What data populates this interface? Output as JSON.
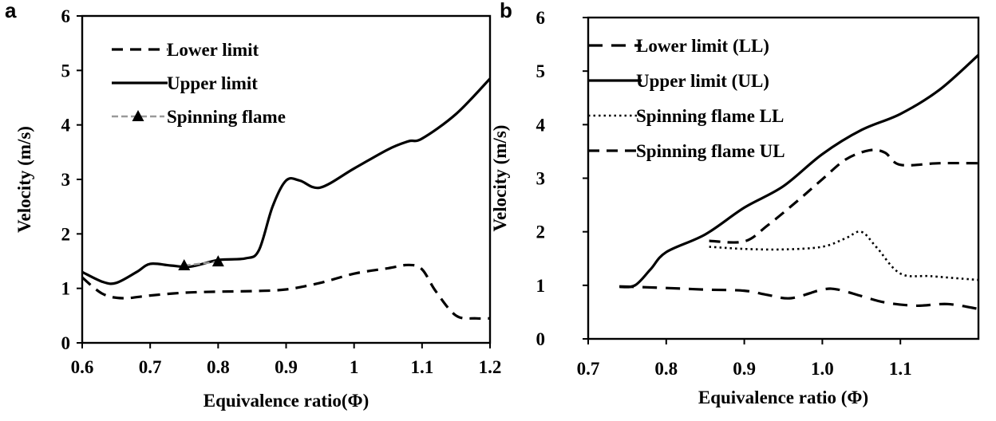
{
  "chart_data": [
    {
      "panel": "a",
      "type": "line",
      "xlabel": "Equivalence ratio(Φ)",
      "ylabel": "Velocity (m/s)",
      "xlim": [
        0.6,
        1.2
      ],
      "ylim": [
        0,
        6
      ],
      "xticks": [
        "0.6",
        "0.7",
        "0.8",
        "0.9",
        "1",
        "1.1",
        "1.2"
      ],
      "yticks": [
        "0",
        "1",
        "2",
        "3",
        "4",
        "5",
        "6"
      ],
      "grid": false,
      "legend_position": "top-left",
      "series": [
        {
          "name": "Lower limit",
          "style": "dashed",
          "color": "#000000",
          "x": [
            0.6,
            0.63,
            0.66,
            0.7,
            0.75,
            0.8,
            0.85,
            0.9,
            0.95,
            1.0,
            1.05,
            1.08,
            1.1,
            1.12,
            1.15,
            1.18,
            1.2
          ],
          "y": [
            1.2,
            0.9,
            0.82,
            0.87,
            0.92,
            0.94,
            0.95,
            0.98,
            1.1,
            1.27,
            1.37,
            1.43,
            1.35,
            0.95,
            0.5,
            0.45,
            0.45
          ]
        },
        {
          "name": "Upper limit",
          "style": "solid",
          "color": "#000000",
          "x": [
            0.6,
            0.63,
            0.65,
            0.68,
            0.7,
            0.73,
            0.76,
            0.8,
            0.84,
            0.86,
            0.88,
            0.9,
            0.92,
            0.95,
            1.0,
            1.05,
            1.08,
            1.1,
            1.15,
            1.2
          ],
          "y": [
            1.3,
            1.12,
            1.1,
            1.3,
            1.45,
            1.42,
            1.4,
            1.52,
            1.55,
            1.7,
            2.5,
            2.98,
            2.98,
            2.85,
            3.2,
            3.55,
            3.7,
            3.75,
            4.2,
            4.85
          ]
        },
        {
          "name": "Spinning flame",
          "style": "triangle-marker",
          "color": "#000000",
          "line_color": "#999999",
          "x": [
            0.75,
            0.8
          ],
          "y": [
            1.42,
            1.49
          ]
        }
      ]
    },
    {
      "panel": "b",
      "type": "line",
      "xlabel": "Equivalence ratio (Φ)",
      "ylabel": "Velocity (m/s)",
      "xlim": [
        0.7,
        1.2
      ],
      "ylim": [
        0,
        6
      ],
      "xticks": [
        "0.7",
        "0.8",
        "0.9",
        "1.0",
        "1.1"
      ],
      "yticks": [
        "0",
        "1",
        "2",
        "3",
        "4",
        "5",
        "6"
      ],
      "grid": false,
      "legend_position": "top-left",
      "series": [
        {
          "name": "Lower limit (LL)",
          "style": "dashed-long",
          "color": "#000000",
          "x": [
            0.74,
            0.8,
            0.85,
            0.9,
            0.93,
            0.96,
            1.0,
            1.02,
            1.05,
            1.08,
            1.12,
            1.16,
            1.2
          ],
          "y": [
            0.98,
            0.95,
            0.92,
            0.9,
            0.82,
            0.76,
            0.92,
            0.92,
            0.8,
            0.68,
            0.62,
            0.65,
            0.56
          ]
        },
        {
          "name": "Upper limit (UL)",
          "style": "solid",
          "color": "#000000",
          "x": [
            0.74,
            0.76,
            0.78,
            0.8,
            0.85,
            0.9,
            0.95,
            1.0,
            1.05,
            1.1,
            1.15,
            1.2
          ],
          "y": [
            0.97,
            1.0,
            1.3,
            1.62,
            1.95,
            2.45,
            2.85,
            3.45,
            3.9,
            4.2,
            4.65,
            5.3
          ]
        },
        {
          "name": "Spinning flame LL",
          "style": "dotted",
          "color": "#000000",
          "x": [
            0.855,
            0.9,
            0.95,
            1.0,
            1.03,
            1.05,
            1.07,
            1.1,
            1.14,
            1.2
          ],
          "y": [
            1.72,
            1.68,
            1.67,
            1.72,
            1.88,
            2.0,
            1.7,
            1.22,
            1.17,
            1.1
          ]
        },
        {
          "name": "Spinning flame UL",
          "style": "dashed",
          "color": "#000000",
          "x": [
            0.855,
            0.9,
            0.93,
            0.97,
            1.0,
            1.03,
            1.06,
            1.08,
            1.1,
            1.15,
            1.2
          ],
          "y": [
            1.83,
            1.82,
            2.12,
            2.6,
            2.98,
            3.35,
            3.52,
            3.48,
            3.25,
            3.28,
            3.28
          ]
        }
      ]
    }
  ]
}
